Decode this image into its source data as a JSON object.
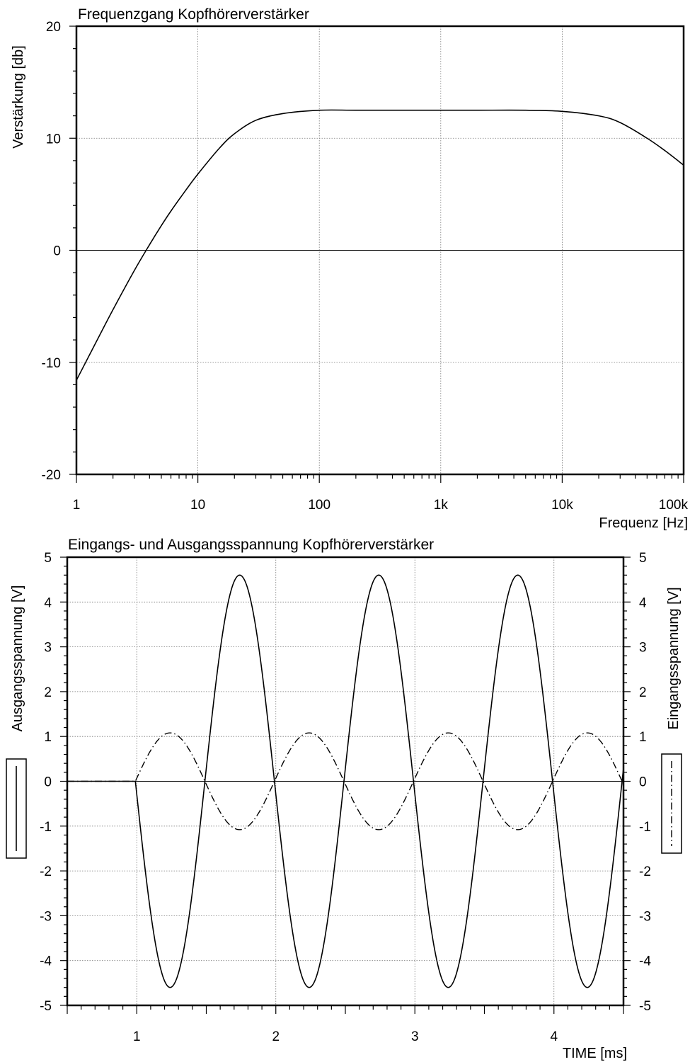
{
  "chart_data": [
    {
      "type": "line",
      "title": "Frequenzgang Kopfhörerverstärker",
      "xlabel": "Frequenz [Hz]",
      "ylabel": "Verstärkung [db]",
      "xscale": "log",
      "xlim": [
        1,
        100000
      ],
      "ylim": [
        -20,
        20
      ],
      "xticks": [
        "1",
        "10",
        "100",
        "1k",
        "10k",
        "100k"
      ],
      "yticks": [
        "20",
        "10",
        "0",
        "-10",
        "-20"
      ],
      "grid": true,
      "series": [
        {
          "x": [
            1,
            1.5,
            2,
            3,
            4,
            5,
            6,
            8,
            10,
            15,
            20,
            30,
            50,
            100,
            200,
            500,
            1000,
            2000,
            5000,
            10000,
            20000,
            30000,
            50000,
            70000,
            100000
          ],
          "values": [
            -11.6,
            -7.9,
            -5.3,
            -1.8,
            0.5,
            2.2,
            3.5,
            5.4,
            6.8,
            9.1,
            10.4,
            11.6,
            12.2,
            12.5,
            12.5,
            12.5,
            12.5,
            12.5,
            12.5,
            12.4,
            12.0,
            11.4,
            10.0,
            8.9,
            7.6
          ]
        }
      ]
    },
    {
      "type": "line",
      "title": "Eingangs- und Ausgangsspannung Kopfhörerverstärker",
      "xlabel": "TIME [ms]",
      "ylabel": "Ausgangsspannung [V]",
      "y2label": "Eingangsspannung [V]",
      "xlim": [
        0.5,
        4.5
      ],
      "ylim": [
        -5,
        5
      ],
      "y2lim": [
        -5,
        5
      ],
      "xticks": [
        "1",
        "2",
        "3",
        "4"
      ],
      "yticks": [
        "5",
        "4",
        "3",
        "2",
        "1",
        "0",
        "-1",
        "-2",
        "-3",
        "-4",
        "-5"
      ],
      "grid": true,
      "legend": "outside-left-and-right",
      "series": [
        {
          "axis": "left",
          "style": "solid",
          "start_ms": 0.99,
          "amplitude": 4.6,
          "frequency_khz": 1,
          "phase": "inverted"
        },
        {
          "axis": "right",
          "style": "dash-dot",
          "start_ms": 0.99,
          "amplitude": 1.08,
          "frequency_khz": 1,
          "phase": "normal"
        }
      ]
    }
  ]
}
